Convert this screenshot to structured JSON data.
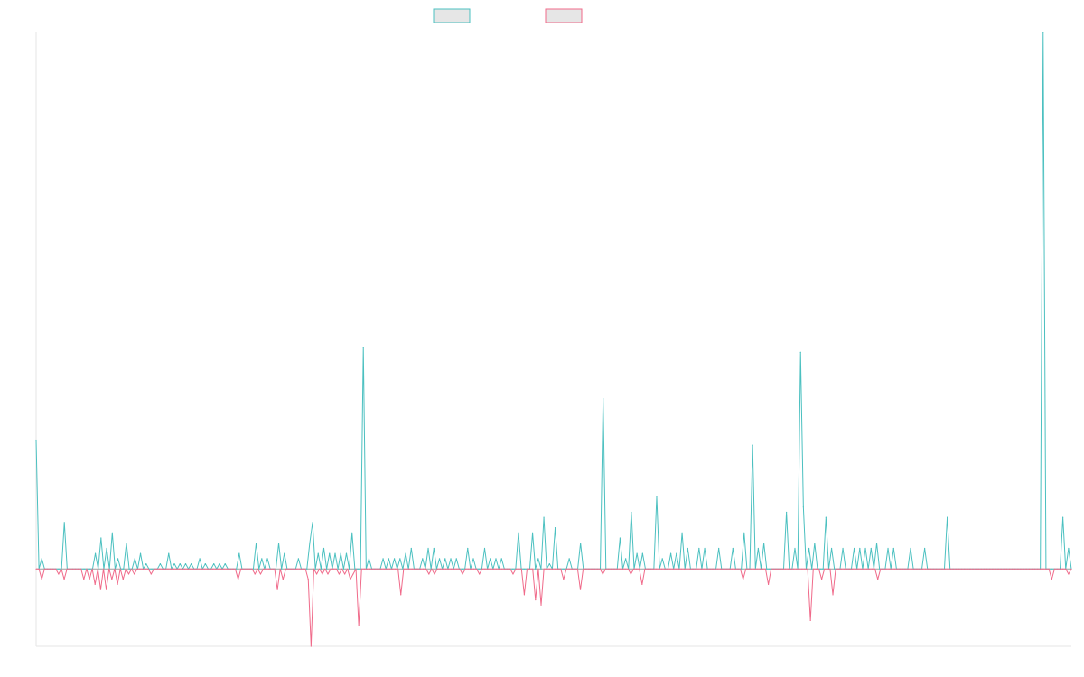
{
  "chart_data": {
    "type": "line",
    "title": "",
    "xlabel": "",
    "ylabel": "",
    "grid": false,
    "legend": "top-center",
    "ylim": [
      -15,
      104
    ],
    "series": [
      {
        "color": "#4bc0c0",
        "values": [
          25,
          0,
          2,
          0,
          0,
          0,
          0,
          0,
          0,
          0,
          9,
          0,
          0,
          0,
          0,
          0,
          0,
          0,
          0,
          0,
          0,
          3,
          0,
          6,
          0,
          4,
          0,
          7,
          0,
          2,
          0,
          0,
          5,
          0,
          0,
          2,
          0,
          3,
          0,
          1,
          0,
          0,
          0,
          0,
          1,
          0,
          0,
          3,
          0,
          1,
          0,
          1,
          0,
          1,
          0,
          1,
          0,
          0,
          2,
          0,
          1,
          0,
          0,
          1,
          0,
          1,
          0,
          1,
          0,
          0,
          0,
          0,
          3,
          0,
          0,
          0,
          0,
          0,
          5,
          0,
          2,
          0,
          2,
          0,
          0,
          0,
          5,
          0,
          3,
          0,
          0,
          0,
          0,
          2,
          0,
          0,
          0,
          5,
          9,
          0,
          3,
          0,
          4,
          0,
          3,
          0,
          3,
          0,
          3,
          0,
          3,
          0,
          7,
          0,
          0,
          0,
          43,
          0,
          2,
          0,
          0,
          0,
          0,
          2,
          0,
          2,
          0,
          2,
          0,
          2,
          0,
          3,
          0,
          4,
          0,
          0,
          0,
          2,
          0,
          4,
          0,
          4,
          0,
          2,
          0,
          2,
          0,
          2,
          0,
          2,
          0,
          0,
          0,
          4,
          0,
          2,
          0,
          0,
          0,
          4,
          0,
          2,
          0,
          2,
          0,
          2,
          0,
          0,
          0,
          0,
          0,
          7,
          0,
          0,
          0,
          0,
          7,
          0,
          2,
          0,
          10,
          0,
          1,
          0,
          8,
          0,
          0,
          0,
          0,
          2,
          0,
          0,
          0,
          5,
          0,
          0,
          0,
          0,
          0,
          0,
          0,
          33,
          0,
          0,
          0,
          0,
          0,
          6,
          0,
          2,
          0,
          11,
          0,
          3,
          0,
          3,
          0,
          0,
          0,
          0,
          14,
          0,
          2,
          0,
          0,
          3,
          0,
          3,
          0,
          7,
          0,
          4,
          0,
          0,
          0,
          4,
          0,
          4,
          0,
          0,
          0,
          0,
          4,
          0,
          0,
          0,
          0,
          4,
          0,
          0,
          0,
          7,
          0,
          0,
          24,
          0,
          4,
          0,
          5,
          0,
          0,
          0,
          0,
          0,
          0,
          0,
          11,
          0,
          0,
          4,
          0,
          42,
          12,
          0,
          4,
          0,
          5,
          0,
          0,
          0,
          10,
          0,
          4,
          0,
          0,
          0,
          4,
          0,
          0,
          0,
          4,
          0,
          4,
          0,
          4,
          0,
          4,
          0,
          5,
          0,
          0,
          0,
          4,
          0,
          4,
          0,
          0,
          0,
          0,
          0,
          4,
          0,
          0,
          0,
          0,
          4,
          0,
          0,
          0,
          0,
          0,
          0,
          0,
          10,
          0,
          0,
          0,
          0,
          0,
          0,
          0,
          0,
          0,
          0,
          0,
          0,
          0,
          0,
          0,
          0,
          0,
          0,
          0,
          0,
          0,
          0,
          0,
          0,
          0,
          0,
          0,
          0,
          0,
          0,
          0,
          0,
          0,
          104,
          0,
          0,
          0,
          0,
          0,
          0,
          10,
          0,
          4,
          0
        ]
      },
      {
        "color": "#f06a8a",
        "values": [
          0,
          0,
          -2,
          0,
          0,
          0,
          0,
          0,
          -1,
          0,
          -2,
          0,
          0,
          0,
          0,
          0,
          0,
          -2,
          0,
          -2,
          0,
          -3,
          0,
          -4,
          0,
          -4,
          0,
          -2,
          0,
          -3,
          0,
          -2,
          0,
          -1,
          0,
          -1,
          0,
          0,
          0,
          0,
          0,
          -1,
          0,
          0,
          0,
          0,
          0,
          0,
          0,
          0,
          0,
          0,
          0,
          0,
          0,
          0,
          0,
          0,
          0,
          0,
          0,
          0,
          0,
          0,
          0,
          0,
          0,
          0,
          0,
          0,
          0,
          0,
          -2,
          0,
          0,
          0,
          0,
          0,
          -1,
          0,
          -1,
          0,
          0,
          0,
          0,
          0,
          -4,
          0,
          -2,
          0,
          0,
          0,
          0,
          0,
          0,
          0,
          0,
          -2,
          -15,
          0,
          -1,
          0,
          -1,
          0,
          -1,
          0,
          0,
          0,
          -1,
          0,
          -1,
          0,
          -2,
          -1,
          0,
          -11,
          0,
          0,
          0,
          0,
          0,
          0,
          0,
          0,
          0,
          0,
          0,
          0,
          0,
          0,
          -5,
          0,
          0,
          0,
          0,
          0,
          0,
          0,
          0,
          0,
          -1,
          0,
          -1,
          0,
          0,
          0,
          0,
          0,
          0,
          0,
          0,
          0,
          -1,
          0,
          0,
          0,
          0,
          0,
          -1,
          0,
          0,
          0,
          0,
          0,
          0,
          0,
          0,
          0,
          0,
          0,
          -1,
          0,
          0,
          0,
          -5,
          0,
          0,
          0,
          -6,
          0,
          -7,
          0,
          0,
          0,
          0,
          0,
          0,
          0,
          -2,
          0,
          0,
          0,
          0,
          0,
          -4,
          0,
          0,
          0,
          0,
          0,
          0,
          0,
          -1,
          0,
          0,
          0,
          0,
          0,
          0,
          0,
          0,
          0,
          -1,
          0,
          0,
          0,
          -3,
          0,
          0,
          0,
          0,
          0,
          0,
          0,
          0,
          0,
          0,
          0,
          0,
          0,
          0,
          0,
          0,
          0,
          0,
          0,
          0,
          0,
          0,
          0,
          0,
          0,
          0,
          0,
          0,
          0,
          0,
          0,
          0,
          0,
          0,
          0,
          -2,
          0,
          0,
          0,
          0,
          0,
          0,
          0,
          0,
          -3,
          0,
          0,
          0,
          0,
          0,
          0,
          0,
          0,
          0,
          0,
          0,
          0,
          0,
          0,
          -10,
          0,
          0,
          0,
          -2,
          0,
          0,
          0,
          -5,
          0,
          0,
          0,
          0,
          0,
          0,
          0,
          0,
          0,
          0,
          0,
          0,
          0,
          0,
          0,
          -2,
          0,
          0,
          0,
          0,
          0,
          0,
          0,
          0,
          0,
          0,
          0,
          0,
          0,
          0,
          0,
          0,
          0,
          0,
          0,
          0,
          0,
          0,
          0,
          0,
          0,
          0,
          0,
          0,
          0,
          0,
          0,
          0,
          0,
          0,
          0,
          0,
          0,
          0,
          0,
          0,
          0,
          0,
          0,
          0,
          0,
          0,
          0,
          0,
          0,
          0,
          0,
          0,
          0,
          0,
          0,
          0,
          0,
          0,
          0,
          0,
          0,
          -2,
          0,
          0,
          0,
          0,
          0,
          -1,
          0
        ]
      }
    ]
  }
}
